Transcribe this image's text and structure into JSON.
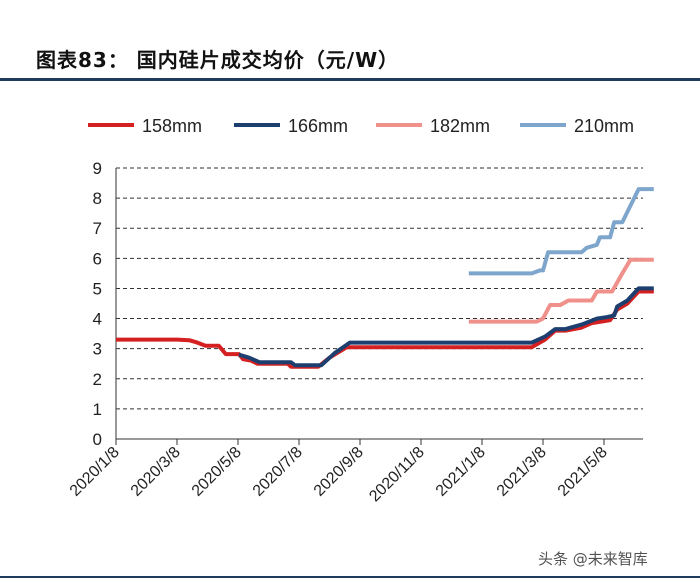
{
  "figure_title": "图表83： 国内硅片成交均价（元/W）",
  "watermark": "头条 @未来智库",
  "chart_data": {
    "type": "line",
    "title": "国内硅片成交均价（元/W）",
    "xlabel": "",
    "ylabel": "",
    "ylim": [
      0,
      9
    ],
    "yticks": [
      "0",
      "1",
      "2",
      "3",
      "4",
      "5",
      "6",
      "7",
      "8",
      "9"
    ],
    "grid": true,
    "legend_position": "top",
    "x_tick_labels": [
      "2020/1/8",
      "2020/3/8",
      "2020/5/8",
      "2020/7/8",
      "2020/9/8",
      "2020/11/8",
      "2021/1/8",
      "2021/3/8",
      "2021/5/8"
    ],
    "series": [
      {
        "name": "158mm",
        "color": "#d42020",
        "points": [
          [
            "2020/1/8",
            3.3
          ],
          [
            "2020/3/8",
            3.3
          ],
          [
            "2020/3/20",
            3.28
          ],
          [
            "2020/3/28",
            3.2
          ],
          [
            "2020/4/5",
            3.1
          ],
          [
            "2020/4/18",
            3.1
          ],
          [
            "2020/4/25",
            2.82
          ],
          [
            "2020/5/8",
            2.82
          ],
          [
            "2020/5/12",
            2.65
          ],
          [
            "2020/5/20",
            2.6
          ],
          [
            "2020/5/26",
            2.5
          ],
          [
            "2020/6/25",
            2.5
          ],
          [
            "2020/6/28",
            2.4
          ],
          [
            "2020/7/25",
            2.4
          ],
          [
            "2020/8/5",
            2.7
          ],
          [
            "2020/8/22",
            3.05
          ],
          [
            "2020/10/15",
            3.05
          ],
          [
            "2020/11/15",
            3.05
          ],
          [
            "2021/2/20",
            3.05
          ],
          [
            "2021/3/5",
            3.3
          ],
          [
            "2021/3/15",
            3.6
          ],
          [
            "2021/3/25",
            3.6
          ],
          [
            "2021/4/10",
            3.7
          ],
          [
            "2021/4/20",
            3.85
          ],
          [
            "2021/5/8",
            3.95
          ],
          [
            "2021/5/15",
            4.3
          ],
          [
            "2021/5/25",
            4.5
          ],
          [
            "2021/6/5",
            4.9
          ],
          [
            "2021/6/20",
            4.9
          ]
        ]
      },
      {
        "name": "166mm",
        "color": "#1c3f70",
        "points": [
          [
            "2020/5/8",
            2.8
          ],
          [
            "2020/5/18",
            2.7
          ],
          [
            "2020/5/28",
            2.55
          ],
          [
            "2020/6/28",
            2.55
          ],
          [
            "2020/7/2",
            2.45
          ],
          [
            "2020/7/28",
            2.45
          ],
          [
            "2020/8/10",
            2.85
          ],
          [
            "2020/8/25",
            3.2
          ],
          [
            "2020/11/25",
            3.2
          ],
          [
            "2021/1/8",
            3.2
          ],
          [
            "2021/2/20",
            3.2
          ],
          [
            "2021/3/5",
            3.4
          ],
          [
            "2021/3/15",
            3.65
          ],
          [
            "2021/3/25",
            3.65
          ],
          [
            "2021/4/10",
            3.8
          ],
          [
            "2021/4/25",
            4.0
          ],
          [
            "2021/5/5",
            4.05
          ],
          [
            "2021/5/12",
            4.1
          ],
          [
            "2021/5/15",
            4.4
          ],
          [
            "2021/5/25",
            4.6
          ],
          [
            "2021/6/5",
            5.0
          ],
          [
            "2021/6/20",
            5.0
          ]
        ]
      },
      {
        "name": "182mm",
        "color": "#f0908a",
        "points": [
          [
            "2020/12/20",
            3.9
          ],
          [
            "2021/2/25",
            3.9
          ],
          [
            "2021/3/3",
            4.0
          ],
          [
            "2021/3/10",
            4.45
          ],
          [
            "2021/3/20",
            4.45
          ],
          [
            "2021/3/28",
            4.6
          ],
          [
            "2021/4/20",
            4.6
          ],
          [
            "2021/4/25",
            4.9
          ],
          [
            "2021/5/10",
            4.9
          ],
          [
            "2021/5/20",
            5.5
          ],
          [
            "2021/5/28",
            5.95
          ],
          [
            "2021/6/20",
            5.95
          ]
        ]
      },
      {
        "name": "210mm",
        "color": "#7ea6cc",
        "points": [
          [
            "2020/12/20",
            5.5
          ],
          [
            "2021/2/20",
            5.5
          ],
          [
            "2021/2/28",
            5.6
          ],
          [
            "2021/3/3",
            5.6
          ],
          [
            "2021/3/8",
            6.2
          ],
          [
            "2021/4/10",
            6.2
          ],
          [
            "2021/4/15",
            6.35
          ],
          [
            "2021/4/25",
            6.45
          ],
          [
            "2021/4/28",
            6.7
          ],
          [
            "2021/5/8",
            6.7
          ],
          [
            "2021/5/12",
            7.2
          ],
          [
            "2021/5/20",
            7.2
          ],
          [
            "2021/6/5",
            8.3
          ],
          [
            "2021/6/20",
            8.3
          ]
        ]
      }
    ]
  }
}
